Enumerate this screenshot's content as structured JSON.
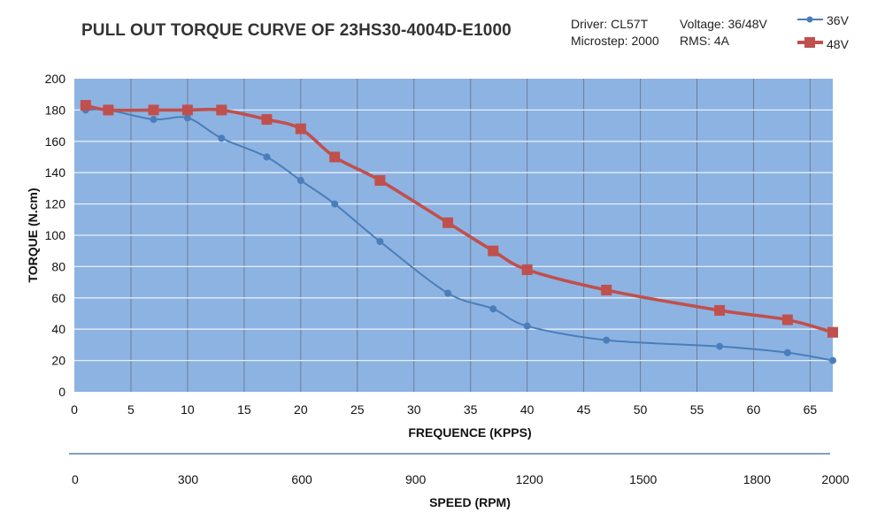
{
  "header": {
    "title": "PULL OUT TORQUE CURVE OF 23HS30-4004D-E1000",
    "driver": "Driver: CL57T",
    "microstep": "Microstep: 2000",
    "voltage": "Voltage: 36/48V",
    "rms": "RMS: 4A"
  },
  "colors": {
    "plot_bg": "#8db3e2",
    "grid_h": "#e6eef9",
    "grid_v": "#6b7f99",
    "series_36": "#4a7ebb",
    "series_48": "#c0504d",
    "speed_axis": "#5b7fa6"
  },
  "chart_data": {
    "type": "line",
    "title": "PULL OUT TORQUE CURVE OF 23HS30-4004D-E1000",
    "xlabel": "FREQUENCE (KPPS)",
    "ylabel": "TORQUE (N.cm)",
    "xlim": [
      0,
      67
    ],
    "ylim": [
      0,
      200
    ],
    "x_ticks": [
      0,
      5,
      10,
      15,
      20,
      25,
      30,
      35,
      40,
      45,
      50,
      55,
      60,
      65
    ],
    "y_ticks": [
      0,
      20,
      40,
      60,
      80,
      100,
      120,
      140,
      160,
      180,
      200
    ],
    "grid": true,
    "legend_position": "top-right",
    "series": [
      {
        "name": "36V",
        "marker": "circle",
        "x": [
          1,
          3,
          7,
          10,
          13,
          17,
          20,
          23,
          27,
          33,
          37,
          40,
          47,
          57,
          63,
          67
        ],
        "values": [
          180,
          180,
          174,
          175,
          162,
          150,
          135,
          120,
          96,
          63,
          53,
          42,
          33,
          29,
          25,
          20
        ]
      },
      {
        "name": "48V",
        "marker": "square",
        "x": [
          1,
          3,
          7,
          10,
          13,
          17,
          20,
          23,
          27,
          33,
          37,
          40,
          47,
          57,
          63,
          67
        ],
        "values": [
          183,
          180,
          180,
          180,
          180,
          174,
          168,
          150,
          135,
          108,
          90,
          78,
          65,
          52,
          46,
          38
        ]
      }
    ],
    "secondary_axis": {
      "label": "SPEED (RPM)",
      "lim": [
        0,
        2000
      ],
      "ticks": [
        0,
        300,
        600,
        900,
        1200,
        1500,
        1800,
        2000
      ]
    }
  }
}
